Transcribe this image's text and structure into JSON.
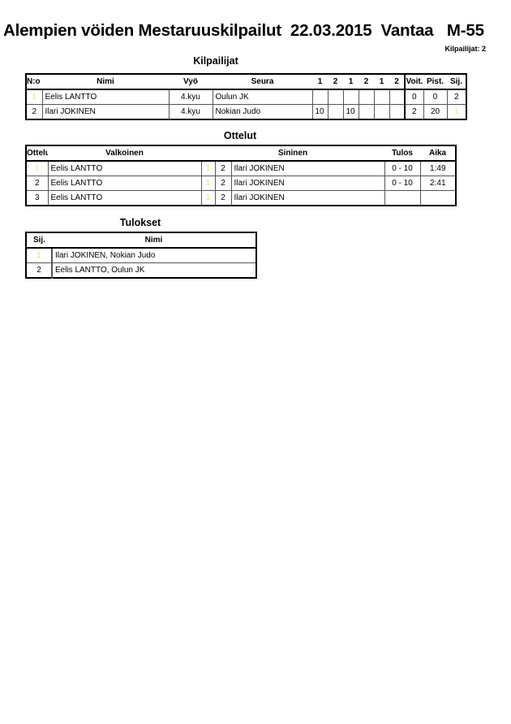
{
  "header": {
    "title": "Alempien vöiden Mestaruuskilpailut  22.03.2015  Vantaa   M-55",
    "competitor_count": "Kilpailijat: 2"
  },
  "competitors": {
    "title": "Kilpailijat",
    "columns": [
      "N:o",
      "Nimi",
      "Vyö",
      "Seura",
      "1",
      "2",
      "1",
      "2",
      "1",
      "2",
      "Voit.",
      "Pist.",
      "Sij."
    ],
    "rows": [
      {
        "no": "1",
        "name": "Eelis LANTTO",
        "belt": "4.kyu",
        "club": "Oulun JK",
        "scores": [
          "",
          "",
          "",
          "",
          "",
          ""
        ],
        "wins": "0",
        "points": "0",
        "rank": "2"
      },
      {
        "no": "2",
        "name": "Ilari JOKINEN",
        "belt": "4.kyu",
        "club": "Nokian Judo",
        "scores": [
          "10",
          "",
          "10",
          "",
          "",
          ""
        ],
        "wins": "2",
        "points": "20",
        "rank": "1"
      }
    ]
  },
  "matches": {
    "title": "Ottelut",
    "columns": [
      "Ottelu",
      "Valkoinen",
      "Sininen",
      "Tulos",
      "Aika"
    ],
    "rows": [
      {
        "no": "1",
        "white": "Eelis LANTTO",
        "white_no": "1",
        "blue_no": "2",
        "blue": "Ilari JOKINEN",
        "result": "0 - 10",
        "time": "1:49"
      },
      {
        "no": "2",
        "white": "Eelis LANTTO",
        "white_no": "1",
        "blue_no": "2",
        "blue": "Ilari JOKINEN",
        "result": "0 - 10",
        "time": "2:41"
      },
      {
        "no": "3",
        "white": "Eelis LANTTO",
        "white_no": "1",
        "blue_no": "2",
        "blue": "Ilari JOKINEN",
        "result": "",
        "time": ""
      }
    ]
  },
  "results": {
    "title": "Tulokset",
    "columns": [
      "Sij.",
      "Nimi"
    ],
    "rows": [
      {
        "rank": "1",
        "name": "Ilari JOKINEN, Nokian Judo"
      },
      {
        "rank": "2",
        "name": "Eelis LANTTO, Oulun JK"
      }
    ]
  }
}
